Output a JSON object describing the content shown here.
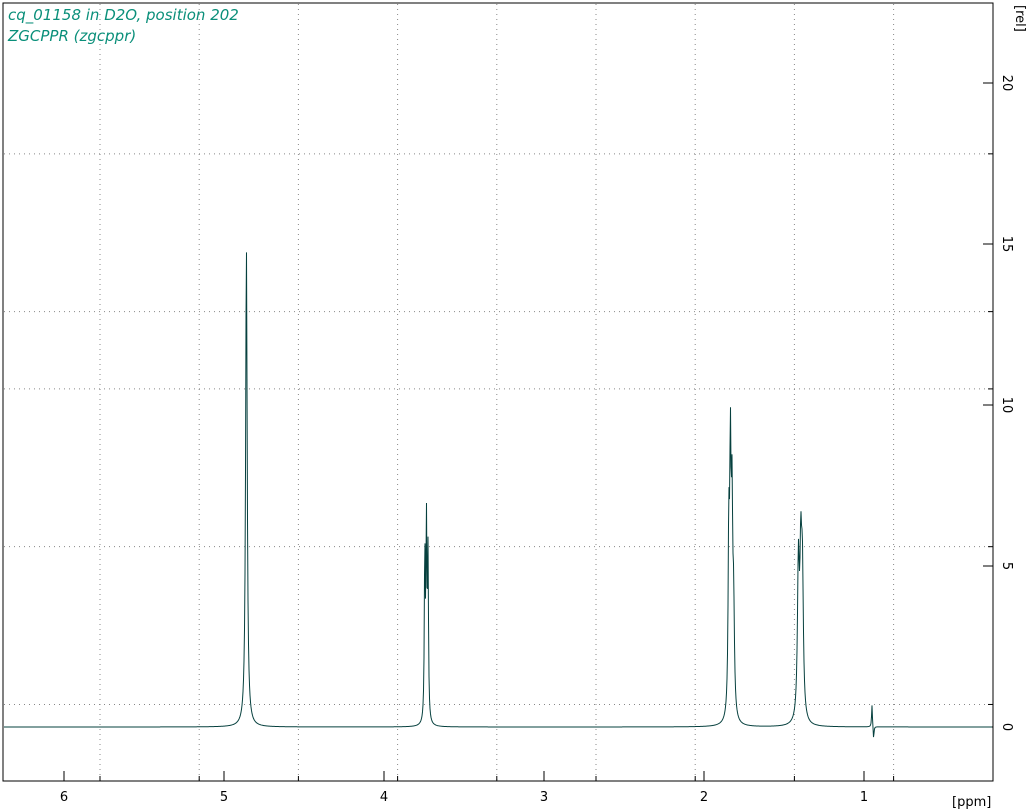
{
  "chart_data": {
    "type": "line",
    "title": "cq_01158 in D2O, position 202",
    "subtitle": "ZGCPPR (zgcppr)",
    "xlabel": "[ppm]",
    "ylabel": "[rel]",
    "xlim": [
      6.28,
      0.2
    ],
    "ylim": [
      -1.7,
      22.6
    ],
    "x_ticks": [
      6,
      5,
      4,
      3,
      2,
      1
    ],
    "y_ticks": [
      0,
      5,
      10,
      15,
      20
    ],
    "x_minor_grid": [
      5.775,
      5.155,
      4.535,
      3.915,
      3.295,
      2.675,
      2.055,
      1.435,
      0.815
    ],
    "y_minor_grid": [
      0.7,
      5.6,
      10.5,
      12.9,
      17.8
    ],
    "grid": true,
    "line_color": "#06403e",
    "peaks": [
      {
        "x": 4.86,
        "y": 14.9
      },
      {
        "x": 3.745,
        "y": 5.3
      },
      {
        "x": 3.735,
        "y": 6.0
      },
      {
        "x": 3.725,
        "y": 5.1
      },
      {
        "x": 1.845,
        "y": 5.4
      },
      {
        "x": 1.835,
        "y": 7.5
      },
      {
        "x": 1.825,
        "y": 5.8
      },
      {
        "x": 1.815,
        "y": 3.2
      },
      {
        "x": 1.41,
        "y": 4.7
      },
      {
        "x": 1.395,
        "y": 4.5
      },
      {
        "x": 1.385,
        "y": 4.1
      },
      {
        "x": 0.95,
        "y": 0.7
      },
      {
        "x": 0.94,
        "y": -0.4
      }
    ]
  }
}
